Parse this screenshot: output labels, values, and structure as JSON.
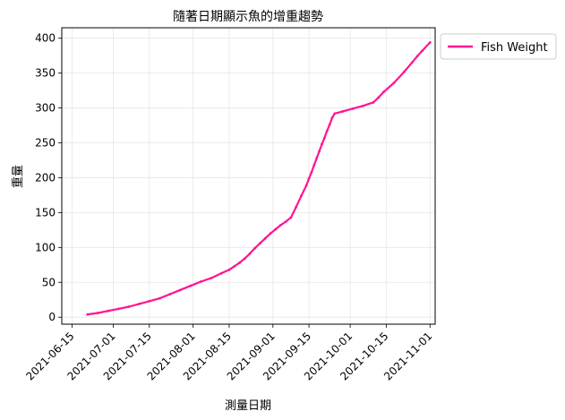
{
  "chart_data": {
    "type": "line",
    "title": "隨著日期顯示魚的增重趨勢",
    "xlabel": "測量日期",
    "ylabel": "重量",
    "x_axis_type": "date",
    "xlim": [
      "2021-06-11",
      "2021-11-03"
    ],
    "ylim": [
      -10,
      415
    ],
    "x_ticks": [
      "2021-06-15",
      "2021-07-01",
      "2021-07-15",
      "2021-08-01",
      "2021-08-15",
      "2021-09-01",
      "2021-09-15",
      "2021-10-01",
      "2021-10-15",
      "2021-11-01"
    ],
    "y_ticks": [
      0,
      50,
      100,
      150,
      200,
      250,
      300,
      350,
      400
    ],
    "grid": true,
    "legend_position": "outside-top-right",
    "series": [
      {
        "name": "Fish Weight",
        "color": "#ff1493",
        "points": [
          [
            "2021-06-21",
            4
          ],
          [
            "2021-06-25",
            6
          ],
          [
            "2021-06-29",
            9
          ],
          [
            "2021-07-03",
            12
          ],
          [
            "2021-07-07",
            15
          ],
          [
            "2021-07-11",
            19
          ],
          [
            "2021-07-15",
            23
          ],
          [
            "2021-07-19",
            27
          ],
          [
            "2021-07-23",
            33
          ],
          [
            "2021-07-27",
            39
          ],
          [
            "2021-07-31",
            45
          ],
          [
            "2021-08-04",
            51
          ],
          [
            "2021-08-08",
            56
          ],
          [
            "2021-08-12",
            63
          ],
          [
            "2021-08-15",
            68
          ],
          [
            "2021-08-17",
            73
          ],
          [
            "2021-08-19",
            78
          ],
          [
            "2021-08-21",
            84
          ],
          [
            "2021-08-23",
            91
          ],
          [
            "2021-08-25",
            99
          ],
          [
            "2021-08-27",
            106
          ],
          [
            "2021-08-29",
            113
          ],
          [
            "2021-08-31",
            120
          ],
          [
            "2021-09-02",
            126
          ],
          [
            "2021-09-04",
            132
          ],
          [
            "2021-09-06",
            137
          ],
          [
            "2021-09-08",
            143
          ],
          [
            "2021-09-10",
            158
          ],
          [
            "2021-09-12",
            174
          ],
          [
            "2021-09-14",
            189
          ],
          [
            "2021-09-15",
            199
          ],
          [
            "2021-09-16",
            208
          ],
          [
            "2021-09-17",
            218
          ],
          [
            "2021-09-18",
            228
          ],
          [
            "2021-09-19",
            238
          ],
          [
            "2021-09-20",
            248
          ],
          [
            "2021-09-21",
            257
          ],
          [
            "2021-09-22",
            267
          ],
          [
            "2021-09-23",
            276
          ],
          [
            "2021-09-24",
            286
          ],
          [
            "2021-09-25",
            292
          ],
          [
            "2021-09-28",
            295
          ],
          [
            "2021-10-02",
            299
          ],
          [
            "2021-10-06",
            303
          ],
          [
            "2021-10-10",
            308
          ],
          [
            "2021-10-12",
            315
          ],
          [
            "2021-10-14",
            323
          ],
          [
            "2021-10-18",
            336
          ],
          [
            "2021-10-22",
            352
          ],
          [
            "2021-10-25",
            365
          ],
          [
            "2021-10-27",
            374
          ],
          [
            "2021-10-29",
            382
          ],
          [
            "2021-11-01",
            394
          ]
        ]
      }
    ]
  }
}
